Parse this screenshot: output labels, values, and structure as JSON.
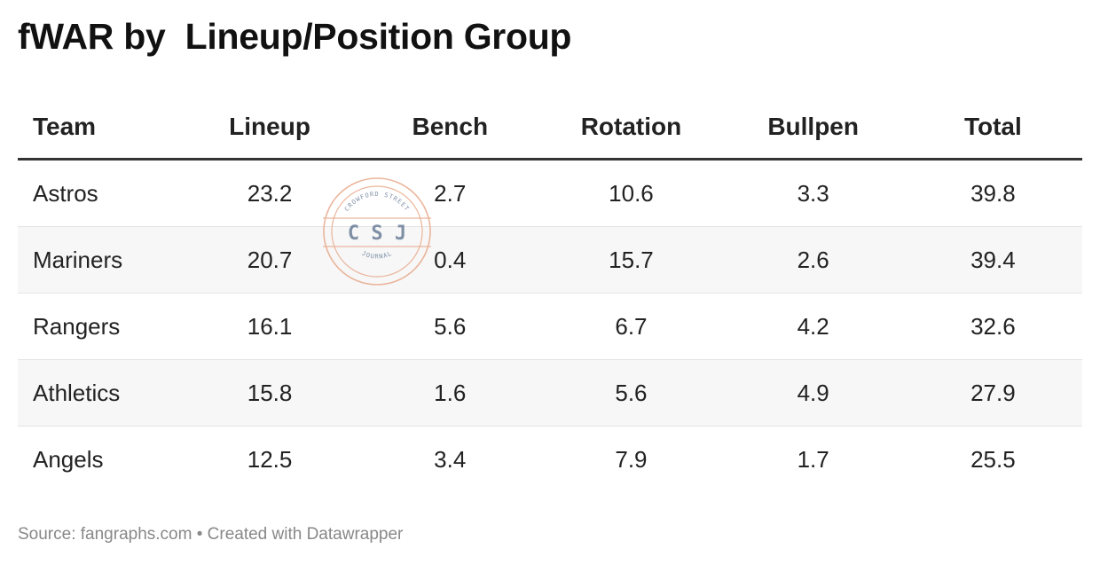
{
  "title": "fWAR by  Lineup/Position Group",
  "watermark": {
    "top_text": "CROWFORD STREET",
    "center_text": "C S J",
    "bottom_text": "JOURNAL"
  },
  "footer": "Source: fangraphs.com • Created with Datawrapper",
  "chart_data": {
    "type": "table",
    "columns": [
      "Team",
      "Lineup",
      "Bench",
      "Rotation",
      "Bullpen",
      "Total"
    ],
    "rows": [
      [
        "Astros",
        "23.2",
        "2.7",
        "10.6",
        "3.3",
        "39.8"
      ],
      [
        "Mariners",
        "20.7",
        "0.4",
        "15.7",
        "2.6",
        "39.4"
      ],
      [
        "Rangers",
        "16.1",
        "5.6",
        "6.7",
        "4.2",
        "32.6"
      ],
      [
        "Athletics",
        "15.8",
        "1.6",
        "5.6",
        "4.9",
        "27.9"
      ],
      [
        "Angels",
        "12.5",
        "3.4",
        "7.9",
        "1.7",
        "25.5"
      ]
    ]
  }
}
